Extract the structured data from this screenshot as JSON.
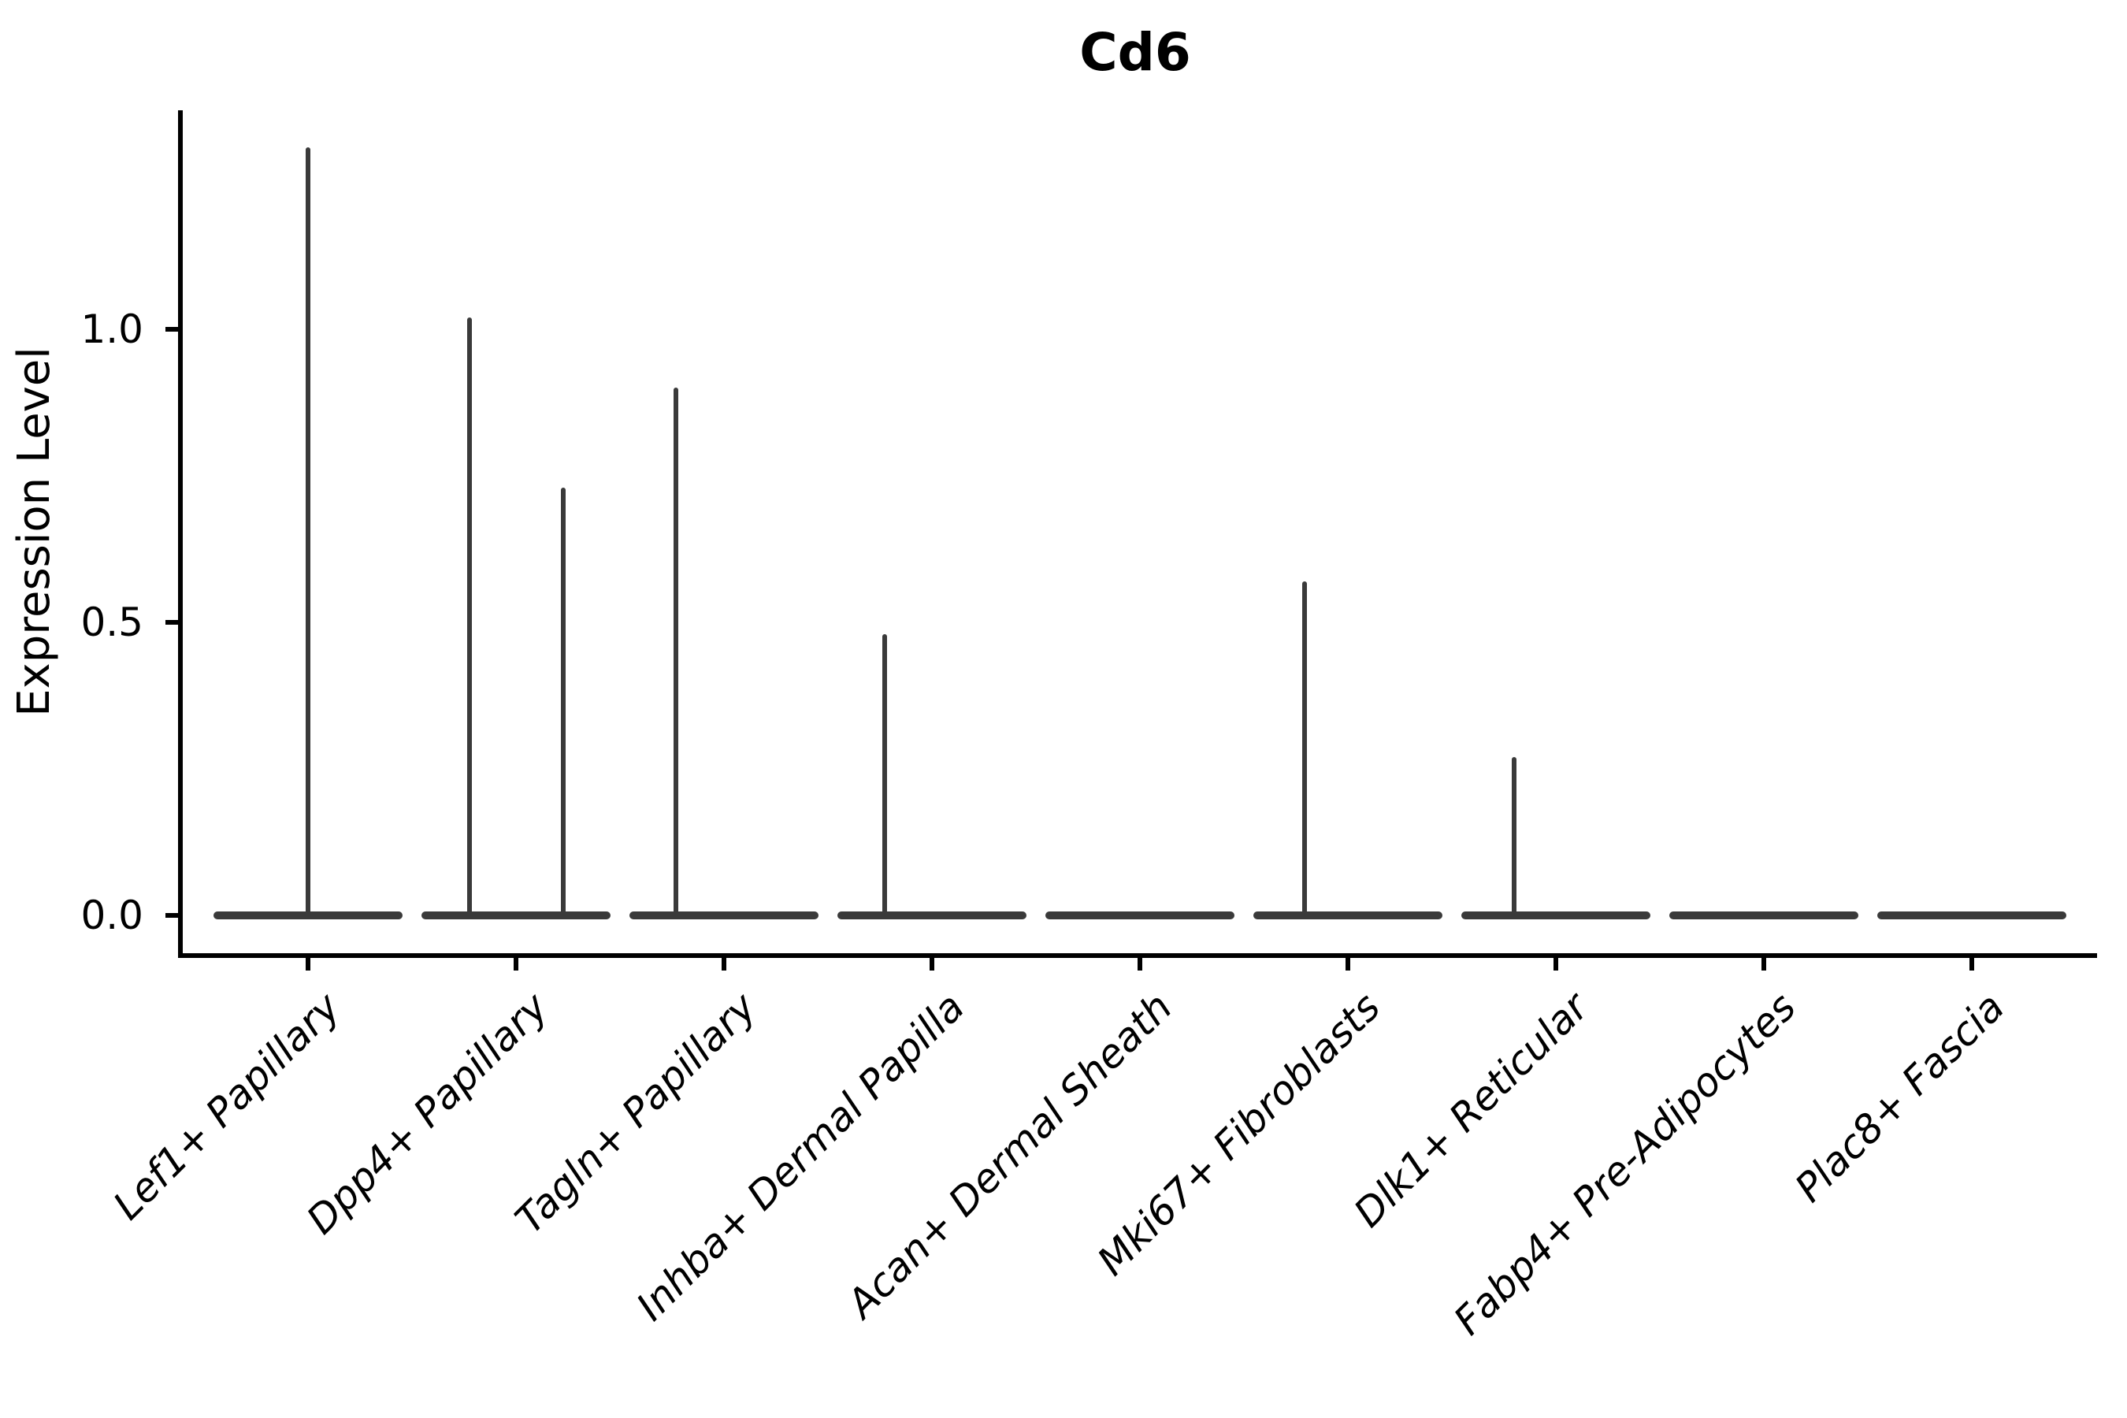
{
  "title": "Cd6",
  "colors": {
    "background": "#ffffff",
    "axis": "#000000",
    "text": "#000000",
    "violin": "#3a3a3a"
  },
  "chart_data": {
    "type": "violin",
    "title": "Cd6",
    "xlabel": "",
    "ylabel": "Expression Level",
    "legend": "none",
    "grid": false,
    "ylim": [
      -0.07,
      1.37
    ],
    "yticks": [
      0.0,
      0.5,
      1.0
    ],
    "ytick_labels": [
      "0.0",
      "0.5",
      "1.0"
    ],
    "categories": [
      "Lef1+ Papillary",
      "Dpp4+ Papillary",
      "Tagln+ Papillary",
      "Inhba+ Dermal Papilla",
      "Acan+ Dermal Sheath",
      "Mki67+ Fibroblasts",
      "Dlk1+ Reticular",
      "Fabp4+ Pre-Adipocytes",
      "Plac8+ Fascia"
    ],
    "series": [
      {
        "name": "Lef1+ Papillary",
        "max_expression": 1.31,
        "spikes": [
          {
            "value": 1.31,
            "dx": 0
          }
        ]
      },
      {
        "name": "Dpp4+ Papillary",
        "max_expression": 1.02,
        "spikes": [
          {
            "value": 1.02,
            "dx": -59
          },
          {
            "value": 0.73,
            "dx": 60
          }
        ]
      },
      {
        "name": "Tagln+ Papillary",
        "max_expression": 0.9,
        "spikes": [
          {
            "value": 0.9,
            "dx": -61
          }
        ]
      },
      {
        "name": "Inhba+ Dermal Papilla",
        "max_expression": 0.48,
        "spikes": [
          {
            "value": 0.48,
            "dx": -60
          }
        ]
      },
      {
        "name": "Acan+ Dermal Sheath",
        "max_expression": 0.0,
        "spikes": []
      },
      {
        "name": "Mki67+ Fibroblasts",
        "max_expression": 0.57,
        "spikes": [
          {
            "value": 0.57,
            "dx": -55
          }
        ]
      },
      {
        "name": "Dlk1+ Reticular",
        "max_expression": 0.27,
        "spikes": [
          {
            "value": 0.27,
            "dx": -53
          }
        ]
      },
      {
        "name": "Fabp4+ Pre-Adipocytes",
        "max_expression": 0.0,
        "spikes": []
      },
      {
        "name": "Plac8+ Fascia",
        "max_expression": 0.0,
        "spikes": []
      }
    ],
    "note": "Violin plot of single-gene expression per cluster; each violin collapses to a flat bar at 0 with a thin spike to the maximum expressing cells."
  }
}
